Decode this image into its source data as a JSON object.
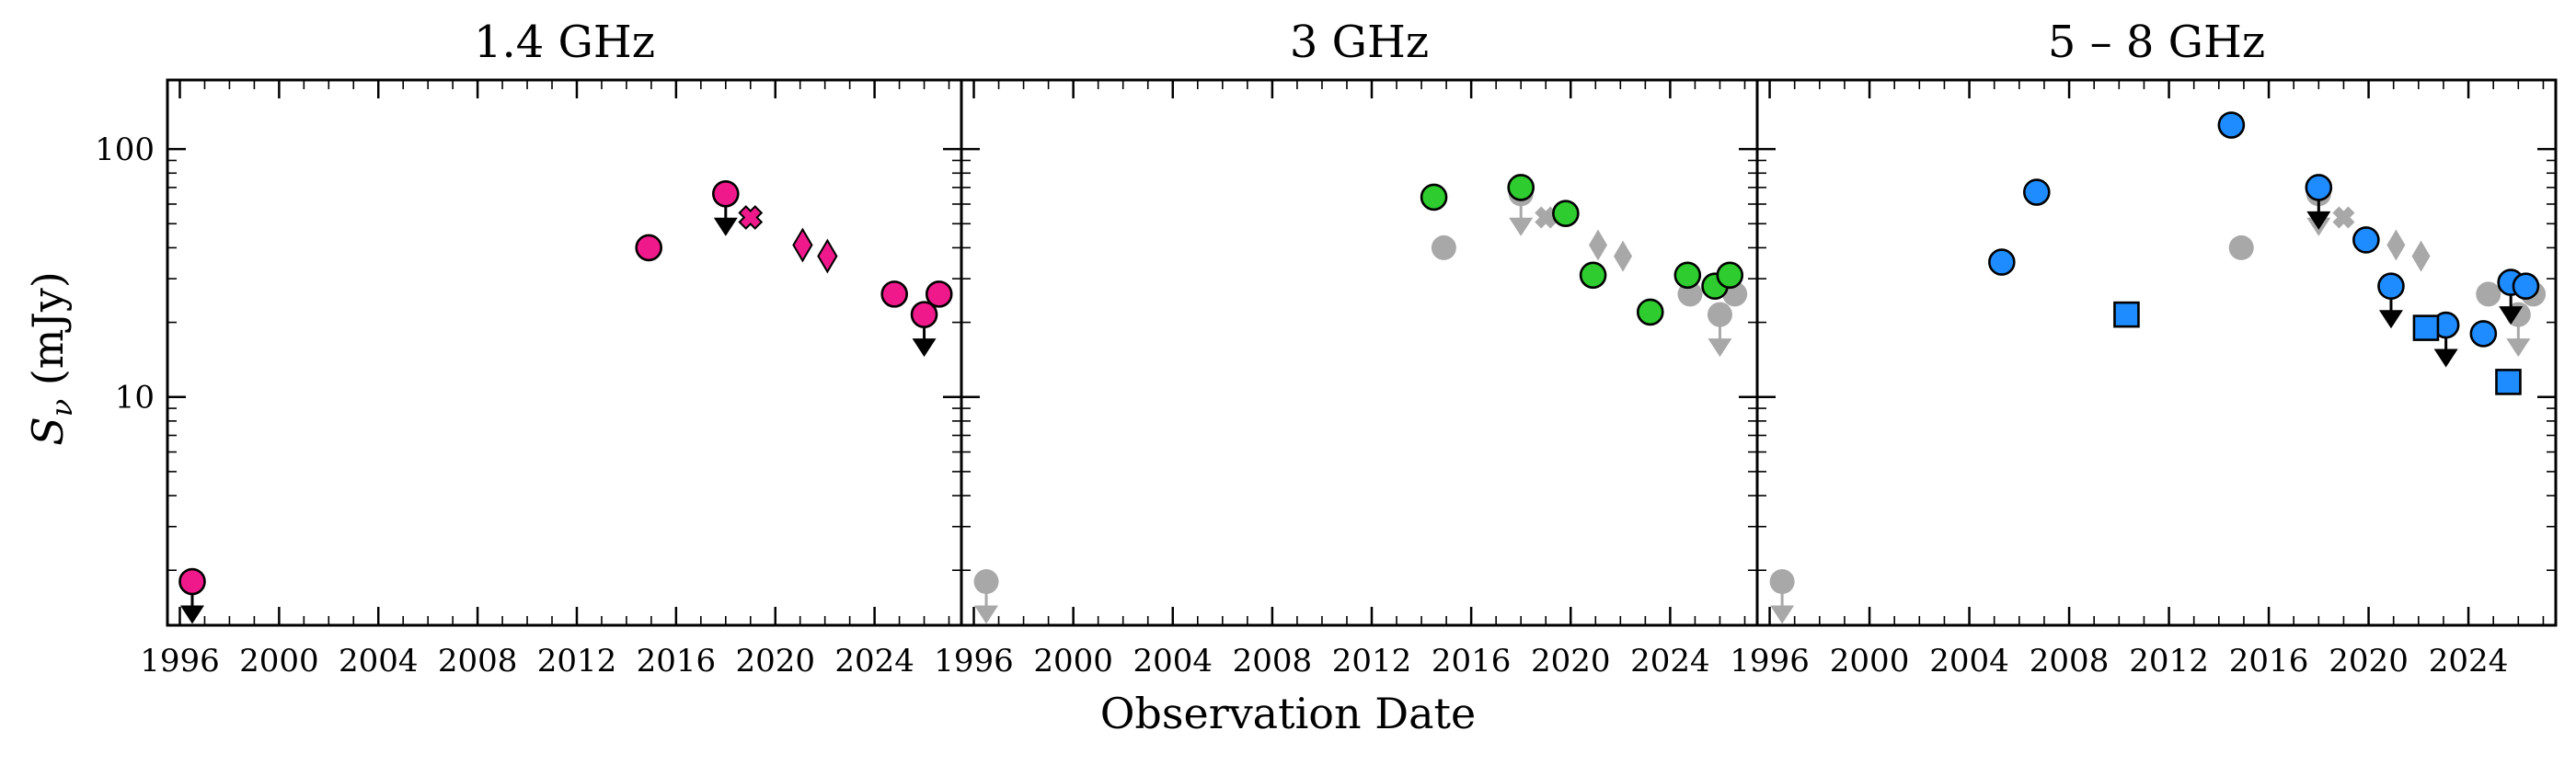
{
  "figure": {
    "xlabel": "Observation Date",
    "ylabel_main": "S",
    "ylabel_sub": "ν",
    "ylabel_unit": " (mJy)"
  },
  "chart_data": [
    {
      "type": "scatter",
      "title": "1.4 GHz",
      "xlim": [
        1995.5,
        2027.5
      ],
      "ylim": [
        1.2,
        190
      ],
      "yscale": "log",
      "xticks": [
        1996,
        2000,
        2004,
        2008,
        2012,
        2016,
        2020,
        2024
      ],
      "yticks": [
        10,
        100
      ],
      "series": [
        {
          "marker": "circle",
          "color": "#f0198c",
          "points": [
            [
              1996.5,
              1.8
            ],
            [
              2014.9,
              40
            ],
            [
              2018.0,
              66
            ],
            [
              2024.8,
              26
            ],
            [
              2026.0,
              21.5
            ],
            [
              2026.6,
              26
            ]
          ]
        },
        {
          "marker": "x",
          "color": "#f0198c",
          "points": [
            [
              2019.0,
              53
            ]
          ]
        },
        {
          "marker": "diamond",
          "color": "#f0198c",
          "points": [
            [
              2021.1,
              41
            ],
            [
              2022.1,
              37
            ]
          ]
        },
        {
          "marker": "upper-limit",
          "color": "#000000",
          "points": [
            [
              1996.5,
              1.8
            ],
            [
              2018.0,
              66
            ],
            [
              2026.0,
              21.5
            ]
          ]
        }
      ]
    },
    {
      "type": "scatter",
      "title": "3 GHz",
      "xlim": [
        1995.5,
        2027.5
      ],
      "ylim": [
        1.2,
        190
      ],
      "yscale": "log",
      "xticks": [
        1996,
        2000,
        2004,
        2008,
        2012,
        2016,
        2020,
        2024
      ],
      "yticks": [
        10,
        100
      ],
      "series": [
        {
          "marker": "circle",
          "color": "#2ecc2e",
          "points": [
            [
              2014.5,
              64
            ],
            [
              2018.0,
              70
            ],
            [
              2019.8,
              55
            ],
            [
              2020.9,
              31
            ],
            [
              2023.2,
              22
            ],
            [
              2024.7,
              31
            ],
            [
              2025.8,
              28
            ],
            [
              2026.4,
              31
            ]
          ]
        },
        {
          "marker": "circle",
          "color": "#a8a8a8",
          "points": [
            [
              1996.5,
              1.8
            ],
            [
              2014.9,
              40
            ],
            [
              2018.0,
              66
            ],
            [
              2024.8,
              26
            ],
            [
              2026.0,
              21.5
            ],
            [
              2026.6,
              26
            ]
          ]
        },
        {
          "marker": "x",
          "color": "#a8a8a8",
          "points": [
            [
              2019.0,
              53
            ]
          ]
        },
        {
          "marker": "diamond",
          "color": "#a8a8a8",
          "points": [
            [
              2021.1,
              41
            ],
            [
              2022.1,
              37
            ]
          ]
        },
        {
          "marker": "upper-limit",
          "color": "#a8a8a8",
          "points": [
            [
              1996.5,
              1.8
            ],
            [
              2018.0,
              66
            ],
            [
              2026.0,
              21.5
            ]
          ]
        }
      ]
    },
    {
      "type": "scatter",
      "title": "5 – 8 GHz",
      "xlim": [
        1995.5,
        2027.5
      ],
      "ylim": [
        1.2,
        190
      ],
      "yscale": "log",
      "xticks": [
        1996,
        2000,
        2004,
        2008,
        2012,
        2016,
        2020,
        2024
      ],
      "yticks": [
        10,
        100
      ],
      "series": [
        {
          "marker": "circle",
          "color": "#1e8cff",
          "points": [
            [
              2005.3,
              35
            ],
            [
              2006.7,
              67
            ],
            [
              2014.5,
              125
            ],
            [
              2018.0,
              70
            ],
            [
              2019.9,
              43
            ],
            [
              2020.9,
              28
            ],
            [
              2023.1,
              19.5
            ],
            [
              2024.6,
              18
            ],
            [
              2025.7,
              29
            ],
            [
              2026.3,
              28
            ]
          ]
        },
        {
          "marker": "square",
          "color": "#1e8cff",
          "points": [
            [
              2010.3,
              21.5
            ],
            [
              2022.3,
              19
            ],
            [
              2025.6,
              11.5
            ]
          ]
        },
        {
          "marker": "upper-limit",
          "color": "#000000",
          "points": [
            [
              2018.0,
              70
            ],
            [
              2020.9,
              28
            ],
            [
              2023.1,
              19.5
            ],
            [
              2025.7,
              29
            ]
          ]
        },
        {
          "marker": "circle",
          "color": "#a8a8a8",
          "points": [
            [
              1996.5,
              1.8
            ],
            [
              2014.9,
              40
            ],
            [
              2018.0,
              66
            ],
            [
              2024.8,
              26
            ],
            [
              2026.0,
              21.5
            ],
            [
              2026.6,
              26
            ]
          ]
        },
        {
          "marker": "x",
          "color": "#a8a8a8",
          "points": [
            [
              2019.0,
              53
            ]
          ]
        },
        {
          "marker": "diamond",
          "color": "#a8a8a8",
          "points": [
            [
              2021.1,
              41
            ],
            [
              2022.1,
              37
            ]
          ]
        },
        {
          "marker": "upper-limit",
          "color": "#a8a8a8",
          "points": [
            [
              1996.5,
              1.8
            ],
            [
              2018.0,
              66
            ],
            [
              2026.0,
              21.5
            ]
          ]
        }
      ]
    }
  ]
}
